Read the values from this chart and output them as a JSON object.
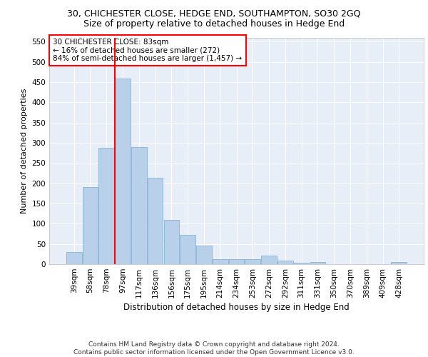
{
  "title": "30, CHICHESTER CLOSE, HEDGE END, SOUTHAMPTON, SO30 2GQ",
  "subtitle": "Size of property relative to detached houses in Hedge End",
  "xlabel": "Distribution of detached houses by size in Hedge End",
  "ylabel": "Number of detached properties",
  "categories": [
    "39sqm",
    "58sqm",
    "78sqm",
    "97sqm",
    "117sqm",
    "136sqm",
    "156sqm",
    "175sqm",
    "195sqm",
    "214sqm",
    "234sqm",
    "253sqm",
    "272sqm",
    "292sqm",
    "311sqm",
    "331sqm",
    "350sqm",
    "370sqm",
    "389sqm",
    "409sqm",
    "428sqm"
  ],
  "values": [
    30,
    190,
    287,
    458,
    290,
    213,
    109,
    73,
    46,
    12,
    12,
    12,
    21,
    9,
    4,
    5,
    0,
    0,
    0,
    0,
    5
  ],
  "bar_color": "#b8d0ea",
  "bar_edge_color": "#7aaad0",
  "annotation_text": "30 CHICHESTER CLOSE: 83sqm\n← 16% of detached houses are smaller (272)\n84% of semi-detached houses are larger (1,457) →",
  "annotation_box_color": "white",
  "annotation_box_edge_color": "red",
  "vline_color": "red",
  "ylim": [
    0,
    560
  ],
  "yticks": [
    0,
    50,
    100,
    150,
    200,
    250,
    300,
    350,
    400,
    450,
    500,
    550
  ],
  "background_color": "#e8eef8",
  "footer_text": "Contains HM Land Registry data © Crown copyright and database right 2024.\nContains public sector information licensed under the Open Government Licence v3.0.",
  "title_fontsize": 9,
  "subtitle_fontsize": 9,
  "xlabel_fontsize": 8.5,
  "ylabel_fontsize": 8,
  "tick_fontsize": 7.5,
  "footer_fontsize": 6.5,
  "annotation_fontsize": 7.5
}
